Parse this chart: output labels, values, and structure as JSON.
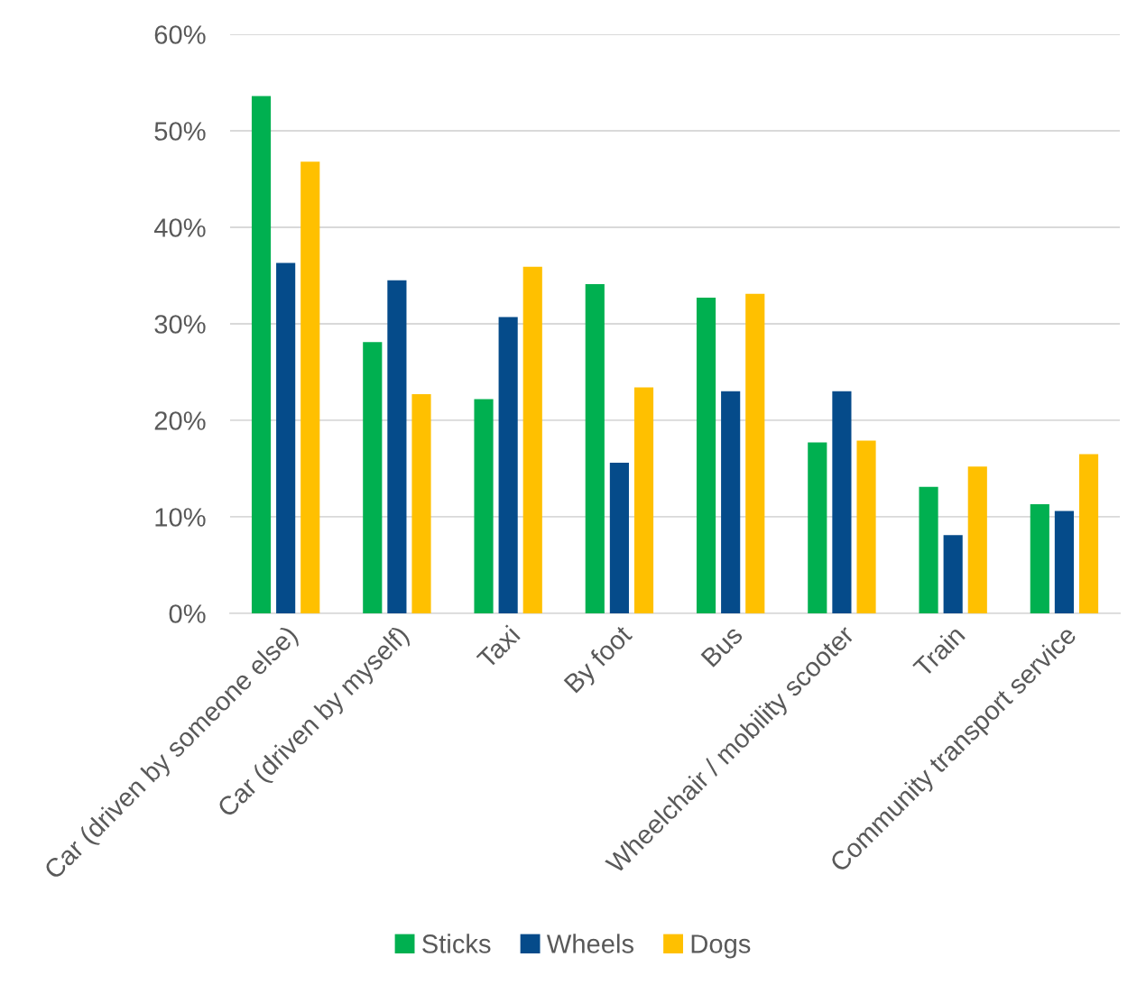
{
  "chart_data": {
    "type": "bar",
    "categories": [
      "Car (driven by someone else)",
      "Car (driven by myself)",
      "Taxi",
      "By foot",
      "Bus",
      "Wheelchair / mobility scooter",
      "Train",
      "Community transport service"
    ],
    "series": [
      {
        "name": "Sticks",
        "color": "#00b050",
        "values": [
          53.6,
          28.1,
          22.2,
          34.1,
          32.7,
          17.7,
          13.1,
          11.3
        ]
      },
      {
        "name": "Wheels",
        "color": "#054b8a",
        "values": [
          36.3,
          34.5,
          30.7,
          15.6,
          23.0,
          23.0,
          8.1,
          10.6
        ]
      },
      {
        "name": "Dogs",
        "color": "#ffc000",
        "values": [
          46.8,
          22.7,
          35.9,
          23.4,
          33.1,
          17.9,
          15.2,
          16.5
        ]
      }
    ],
    "ylim": [
      0,
      60
    ],
    "yticks": [
      {
        "value": 0,
        "label": "0%"
      },
      {
        "value": 10,
        "label": "10%"
      },
      {
        "value": 20,
        "label": "20%"
      },
      {
        "value": 30,
        "label": "30%"
      },
      {
        "value": 40,
        "label": "40%"
      },
      {
        "value": 50,
        "label": "50%"
      },
      {
        "value": 60,
        "label": "60%"
      }
    ],
    "grid": "y",
    "legend": "bottom"
  }
}
